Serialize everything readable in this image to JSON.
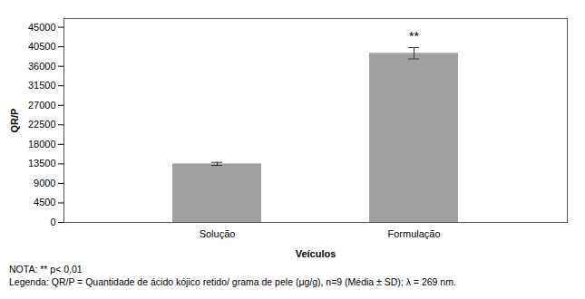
{
  "chart_data": {
    "type": "bar",
    "categories": [
      "Solução",
      "Formulação"
    ],
    "values": [
      13500,
      39000
    ],
    "errors": [
      350,
      1300
    ],
    "color": "#a0a0a0",
    "xlabel": "Veículos",
    "ylabel": "QR/P",
    "ylim": [
      0,
      47000
    ],
    "yticks": [
      0,
      4500,
      9000,
      13500,
      18000,
      22500,
      27000,
      31500,
      36000,
      40500,
      45000
    ],
    "grid": false,
    "annotations": [
      {
        "text": "**",
        "category": "Formulação"
      }
    ],
    "notes": [
      "NOTA: ** p< 0,01",
      "Legenda: QR/P = Quantidade de ácido kójico retido/ grama de pele (μg/g), n=9 (Média ± SD); λ = 269 nm."
    ]
  }
}
